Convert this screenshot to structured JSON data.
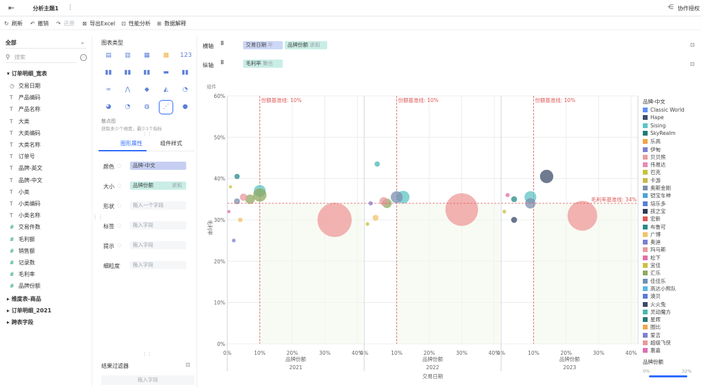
{
  "topbar": {
    "tab_title": "分析主题1",
    "more": "⋮",
    "right_label": "协作授权"
  },
  "toolbar": {
    "items": [
      {
        "label": "刷新",
        "icon": "refresh-icon"
      },
      {
        "label": "撤销",
        "icon": "undo-icon"
      },
      {
        "label": "还原",
        "icon": "redo-icon"
      },
      {
        "label": "导出Excel",
        "icon": "excel-icon"
      },
      {
        "label": "性能分析",
        "icon": "performance-icon"
      },
      {
        "label": "数据解释",
        "icon": "explain-icon"
      }
    ]
  },
  "left": {
    "scope_select": "全部",
    "search_placeholder": "搜索",
    "group1": "订单明细_宽表",
    "fields": [
      {
        "type": "date",
        "label": "交易日期"
      },
      {
        "type": "T",
        "label": "产品编码"
      },
      {
        "type": "T",
        "label": "产品名称"
      },
      {
        "type": "T",
        "label": "大类"
      },
      {
        "type": "T",
        "label": "大类编码"
      },
      {
        "type": "T",
        "label": "大类名称"
      },
      {
        "type": "T",
        "label": "订单号"
      },
      {
        "type": "T",
        "label": "品牌-英文"
      },
      {
        "type": "T",
        "label": "品牌-中文"
      },
      {
        "type": "T",
        "label": "小类"
      },
      {
        "type": "T",
        "label": "小类编码"
      },
      {
        "type": "T",
        "label": "小类名称"
      },
      {
        "type": "#",
        "label": "交易件数"
      },
      {
        "type": "#",
        "label": "毛利额"
      },
      {
        "type": "#",
        "label": "销售额"
      },
      {
        "type": "#",
        "label": "记录数"
      },
      {
        "type": "#",
        "label": "毛利率"
      },
      {
        "type": "#",
        "label": "品牌份额"
      }
    ],
    "groups": [
      "维度表-商品",
      "订单明细_2021",
      "跨表字段"
    ]
  },
  "mid": {
    "chart_type_title": "图表类型",
    "chart_desc_title": "散点图",
    "chart_desc": "获取多少个维度，最少1个指标",
    "tabs": [
      "图形属性",
      "组件样式"
    ],
    "props": [
      {
        "label": "颜色",
        "value": "品牌-中文",
        "placeholder": ""
      },
      {
        "label": "大小",
        "value": "品牌份额",
        "suffix": "求和",
        "placeholder": ""
      },
      {
        "label": "形状",
        "value": "",
        "placeholder": "拖入一个字段"
      },
      {
        "label": "标签",
        "value": "",
        "placeholder": "拖入字段"
      },
      {
        "label": "提示",
        "value": "",
        "placeholder": "拖入字段"
      },
      {
        "label": "细粒度",
        "value": "",
        "placeholder": "拖入字段"
      }
    ],
    "filter_title": "结果过滤器",
    "filter_placeholder": "拖入字段"
  },
  "shelves": {
    "x_label": "横轴",
    "x_pills": [
      {
        "text": "交易日期",
        "suffix": "年"
      },
      {
        "text": "品牌份额",
        "suffix": "求和"
      }
    ],
    "y_label": "纵轴",
    "y_pills": [
      {
        "text": "毛利率",
        "suffix": "聚合"
      }
    ]
  },
  "chart_header": "组件",
  "legend": {
    "title": "品牌-中文",
    "items": [
      {
        "name": "Classic World",
        "color": "#5b8ff9"
      },
      {
        "name": "Hape",
        "color": "#3d4f6b"
      },
      {
        "name": "Sising",
        "color": "#5fc4c4"
      },
      {
        "name": "SkyRealm",
        "color": "#1f7a7a"
      },
      {
        "name": "乐高",
        "color": "#f2a44a"
      },
      {
        "name": "伊甸",
        "color": "#7b7fd4"
      },
      {
        "name": "贝贝熊",
        "color": "#e8a0a0"
      },
      {
        "name": "伟易达",
        "color": "#e88ab8"
      },
      {
        "name": "巴克",
        "color": "#c9c23c"
      },
      {
        "name": "卡游",
        "color": "#c8b84a"
      },
      {
        "name": "奥斯金刚",
        "color": "#7b8fb0"
      },
      {
        "name": "铠宝车神",
        "color": "#4aa3d8"
      },
      {
        "name": "培乐多",
        "color": "#5a7fd6"
      },
      {
        "name": "孩之宝",
        "color": "#2f3d5a"
      },
      {
        "name": "宏新",
        "color": "#e05a5a"
      },
      {
        "name": "布鲁可",
        "color": "#2a8a8a"
      },
      {
        "name": "广博",
        "color": "#f2c46a"
      },
      {
        "name": "奥迪",
        "color": "#7a7fd0"
      },
      {
        "name": "玛马斯",
        "color": "#e89aa0"
      },
      {
        "name": "松下",
        "color": "#e070a8"
      },
      {
        "name": "宜佳",
        "color": "#c8c040"
      },
      {
        "name": "汇乐",
        "color": "#8fa860"
      },
      {
        "name": "佳佳乐",
        "color": "#6a90b8"
      },
      {
        "name": "高达小熊队",
        "color": "#5ab8e0"
      },
      {
        "name": "澳贝",
        "color": "#5a7ad8"
      },
      {
        "name": "火火兔",
        "color": "#3a4a68"
      },
      {
        "name": "灵动魔方",
        "color": "#48b8b0"
      },
      {
        "name": "星辉",
        "color": "#2a7878"
      },
      {
        "name": "图比",
        "color": "#f0a850"
      },
      {
        "name": "爱吉",
        "color": "#8080d0"
      },
      {
        "name": "超级飞侠",
        "color": "#e89a9a"
      },
      {
        "name": "惠嘉",
        "color": "#e070b0"
      }
    ],
    "size_title": "品牌份额",
    "size_min": "0%",
    "size_max": "32%"
  },
  "chart_data": {
    "type": "scatter",
    "y_label": "毛利率",
    "y_ticks": [
      "0%",
      "10%",
      "20%",
      "30%",
      "40%",
      "50%",
      "60%"
    ],
    "ylim": [
      0,
      0.6
    ],
    "x_label": "品牌份额",
    "x_ticks": [
      "0%",
      "10%",
      "20%",
      "30%",
      "40%"
    ],
    "xlim": [
      0,
      0.4
    ],
    "outer_x_label": "交易日期",
    "ref_x_label": "份额基准线: 10%",
    "ref_x_value": 0.1,
    "ref_y_label": "毛利率基准线: 34%",
    "ref_y_value": 0.34,
    "grid": true,
    "panels": [
      {
        "year": "2021",
        "points": [
          {
            "x": 0.33,
            "y": 0.3,
            "size": 0.33,
            "color": "#ef9a9a"
          },
          {
            "x": 0.1,
            "y": 0.37,
            "size": 0.04,
            "color": "#5fc4c4"
          },
          {
            "x": 0.1,
            "y": 0.36,
            "size": 0.05,
            "color": "#8fa860"
          },
          {
            "x": 0.07,
            "y": 0.35,
            "size": 0.025,
            "color": "#8fa860"
          },
          {
            "x": 0.05,
            "y": 0.355,
            "size": 0.015,
            "color": "#e89aa0"
          },
          {
            "x": 0.03,
            "y": 0.345,
            "size": 0.01,
            "color": "#7b8fb0"
          },
          {
            "x": 0.03,
            "y": 0.405,
            "size": 0.008,
            "color": "#2a8a8a"
          },
          {
            "x": 0.04,
            "y": 0.3,
            "size": 0.006,
            "color": "#f2c46a"
          },
          {
            "x": 0.02,
            "y": 0.25,
            "size": 0.004,
            "color": "#7b7fd4"
          },
          {
            "x": 0.01,
            "y": 0.38,
            "size": 0.003,
            "color": "#c9c23c"
          },
          {
            "x": 0.005,
            "y": 0.32,
            "size": 0.003,
            "color": "#e070a8"
          }
        ]
      },
      {
        "year": "2022",
        "points": [
          {
            "x": 0.3,
            "y": 0.325,
            "size": 0.3,
            "color": "#ef9a9a"
          },
          {
            "x": 0.12,
            "y": 0.355,
            "size": 0.045,
            "color": "#5fc4c4"
          },
          {
            "x": 0.1,
            "y": 0.355,
            "size": 0.04,
            "color": "#7b8fb0"
          },
          {
            "x": 0.07,
            "y": 0.34,
            "size": 0.025,
            "color": "#8fa860"
          },
          {
            "x": 0.06,
            "y": 0.345,
            "size": 0.02,
            "color": "#e89aa0"
          },
          {
            "x": 0.04,
            "y": 0.435,
            "size": 0.008,
            "color": "#48b8b0"
          },
          {
            "x": 0.035,
            "y": 0.305,
            "size": 0.01,
            "color": "#f2c46a"
          },
          {
            "x": 0.02,
            "y": 0.34,
            "size": 0.005,
            "color": "#7b7fd4"
          },
          {
            "x": 0.01,
            "y": 0.29,
            "size": 0.004,
            "color": "#c9c23c"
          }
        ]
      },
      {
        "year": "2023",
        "points": [
          {
            "x": 0.25,
            "y": 0.31,
            "size": 0.25,
            "color": "#ef9a9a"
          },
          {
            "x": 0.14,
            "y": 0.405,
            "size": 0.05,
            "color": "#3d4f6b"
          },
          {
            "x": 0.09,
            "y": 0.355,
            "size": 0.04,
            "color": "#5fc4c4"
          },
          {
            "x": 0.09,
            "y": 0.34,
            "size": 0.03,
            "color": "#7b8fb0"
          },
          {
            "x": 0.04,
            "y": 0.35,
            "size": 0.01,
            "color": "#2a8a8a"
          },
          {
            "x": 0.04,
            "y": 0.3,
            "size": 0.01,
            "color": "#3a4a68"
          },
          {
            "x": 0.02,
            "y": 0.36,
            "size": 0.005,
            "color": "#e070a8"
          },
          {
            "x": 0.01,
            "y": 0.32,
            "size": 0.004,
            "color": "#c8c040"
          }
        ]
      }
    ]
  }
}
